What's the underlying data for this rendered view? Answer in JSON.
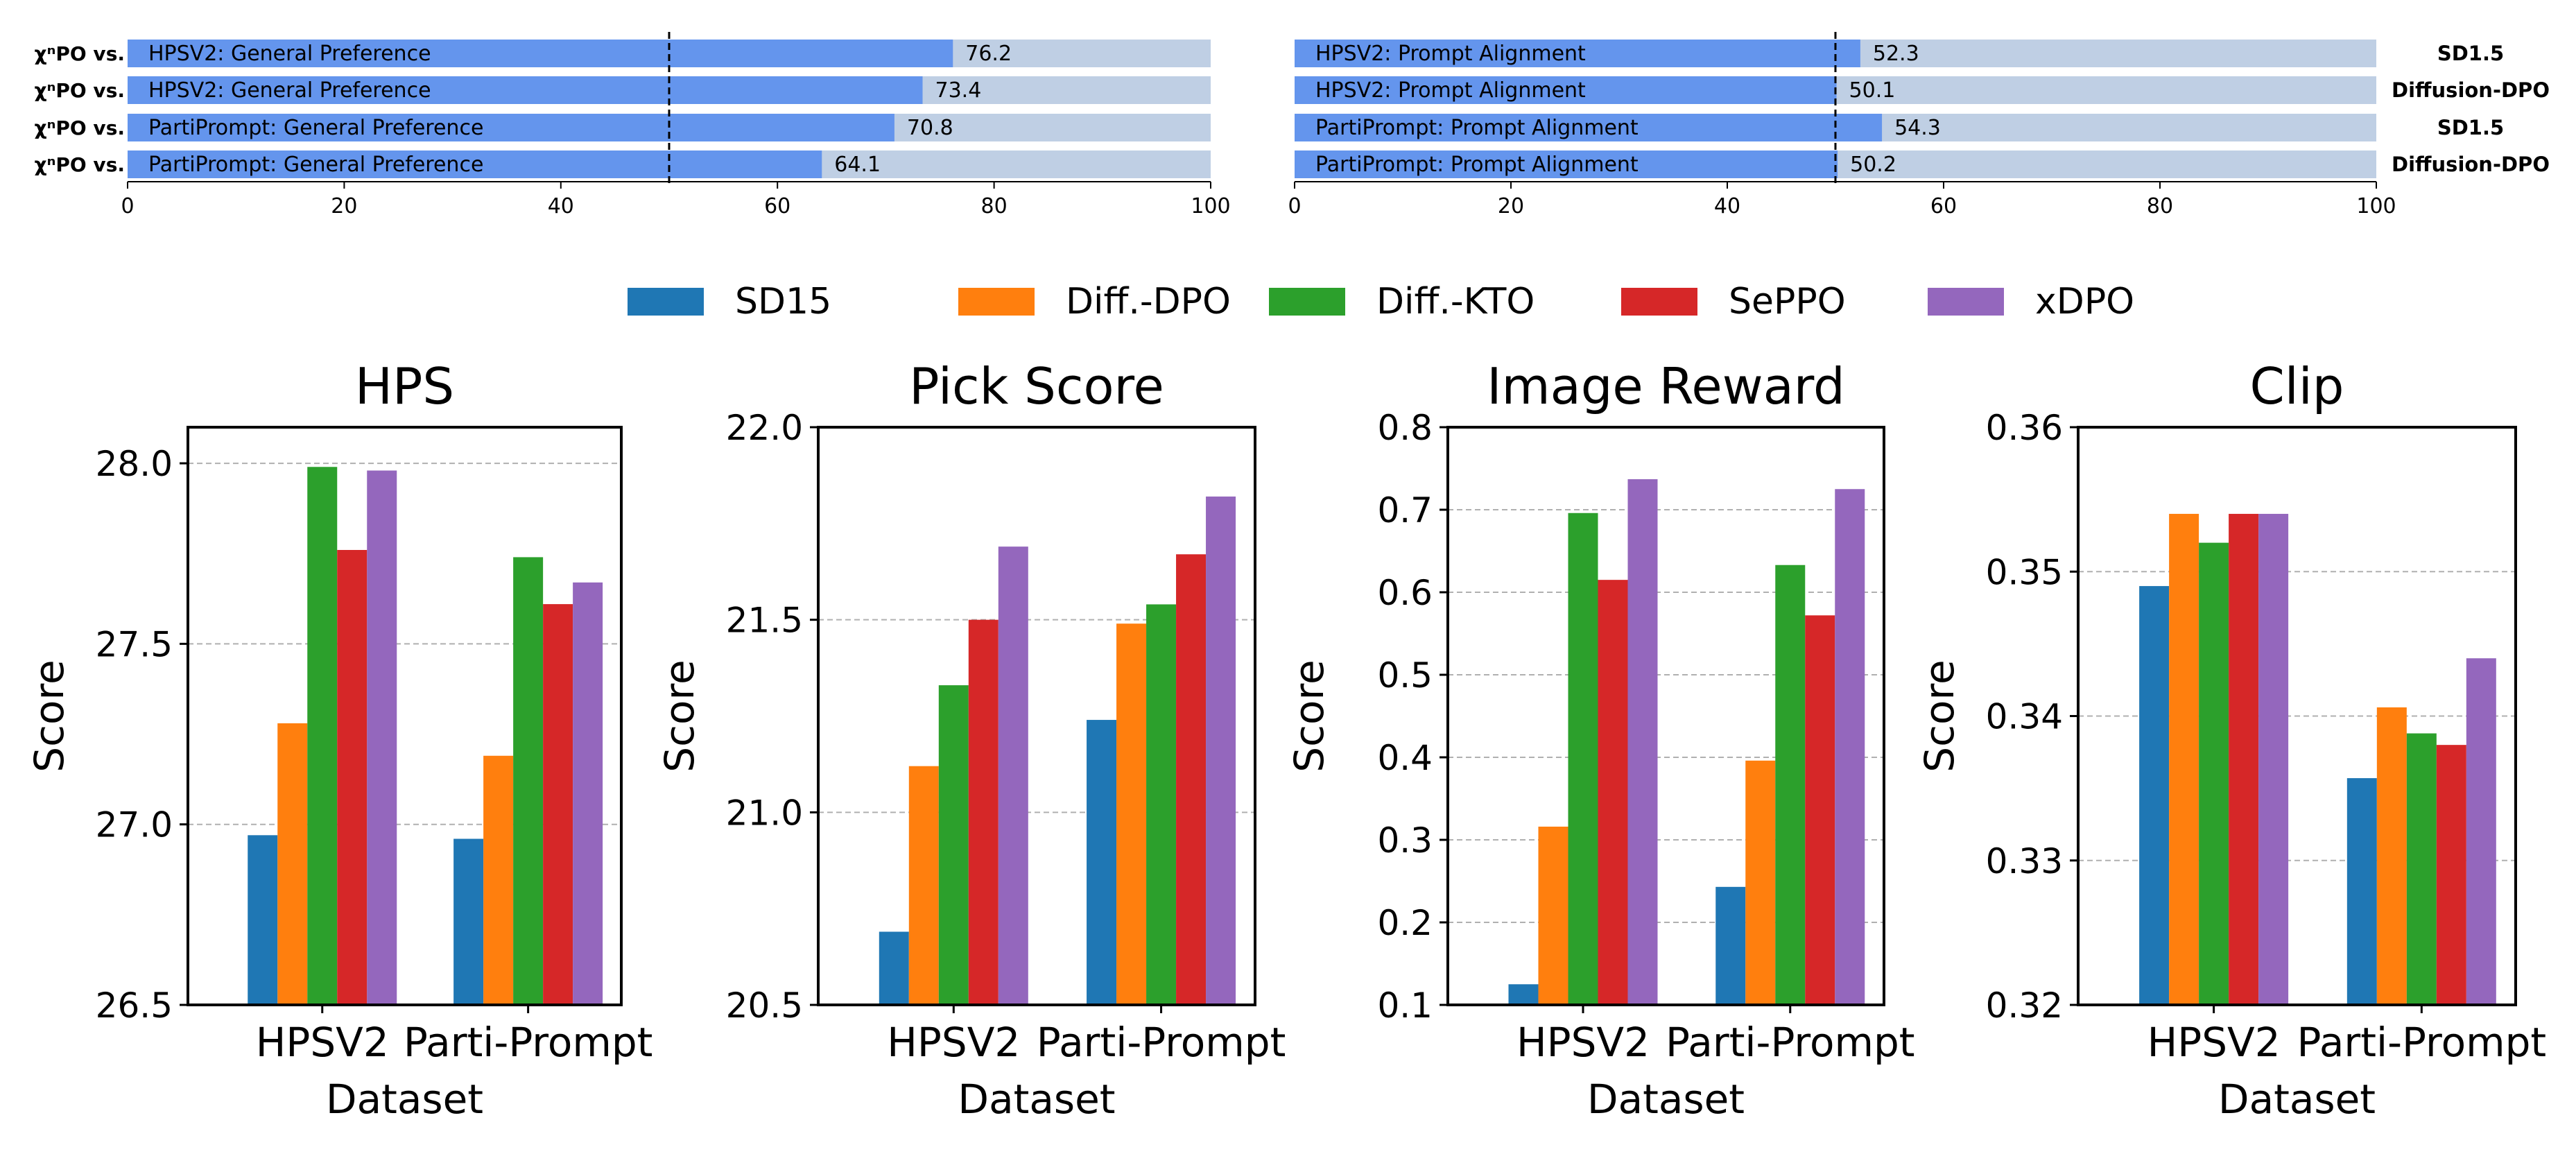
{
  "chart_data": [
    {
      "type": "bar",
      "orientation": "horizontal",
      "panel": "general-preference",
      "row_prefix": "χⁿPO vs.",
      "categories": [
        "HPSV2: General Preference",
        "HPSV2: General Preference",
        "PartiPrompt: General Preference",
        "PartiPrompt: General Preference"
      ],
      "values": [
        76.2,
        73.4,
        70.8,
        64.1
      ],
      "value_labels": [
        "76.2",
        "73.4",
        "70.8",
        "64.1"
      ],
      "xlim": [
        0,
        100
      ],
      "xticks": [
        0,
        20,
        40,
        60,
        80,
        100
      ],
      "reference_line": 50,
      "colors": {
        "win": "#6495ED",
        "background": "#BFCFE4"
      }
    },
    {
      "type": "bar",
      "orientation": "horizontal",
      "panel": "prompt-alignment",
      "categories": [
        "HPSV2: Prompt Alignment",
        "HPSV2: Prompt Alignment",
        "PartiPrompt: Prompt Alignment",
        "PartiPrompt: Prompt Alignment"
      ],
      "values": [
        52.3,
        50.1,
        54.3,
        50.2
      ],
      "value_labels": [
        "52.3",
        "50.1",
        "54.3",
        "50.2"
      ],
      "right_labels": [
        "SD1.5",
        "Diffusion-DPO",
        "SD1.5",
        "Diffusion-DPO"
      ],
      "xlim": [
        0,
        100
      ],
      "xticks": [
        0,
        20,
        40,
        60,
        80,
        100
      ],
      "reference_line": 50,
      "colors": {
        "win": "#6495ED",
        "background": "#BFCFE4"
      }
    },
    {
      "type": "bar",
      "title": "HPS",
      "xlabel": "Dataset",
      "ylabel": "Score",
      "categories": [
        "HPSV2",
        "Parti-Prompt"
      ],
      "ylim": [
        26.5,
        28.1
      ],
      "yticks": [
        26.5,
        27.0,
        27.5,
        28.0
      ],
      "ytick_labels": [
        "26.5",
        "27.0",
        "27.5",
        "28.0"
      ],
      "grid": true,
      "series": [
        {
          "name": "SD15",
          "values": [
            26.97,
            26.96
          ]
        },
        {
          "name": "Diff.-DPO",
          "values": [
            27.28,
            27.19
          ]
        },
        {
          "name": "Diff.-KTO",
          "values": [
            27.99,
            27.74
          ]
        },
        {
          "name": "SePPO",
          "values": [
            27.76,
            27.61
          ]
        },
        {
          "name": "xDPO",
          "values": [
            27.98,
            27.67
          ]
        }
      ]
    },
    {
      "type": "bar",
      "title": "Pick Score",
      "xlabel": "Dataset",
      "ylabel": "Score",
      "categories": [
        "HPSV2",
        "Parti-Prompt"
      ],
      "ylim": [
        20.5,
        22.0
      ],
      "yticks": [
        20.5,
        21.0,
        21.5,
        22.0
      ],
      "ytick_labels": [
        "20.5",
        "21.0",
        "21.5",
        "22.0"
      ],
      "grid": true,
      "series": [
        {
          "name": "SD15",
          "values": [
            20.69,
            21.24
          ]
        },
        {
          "name": "Diff.-DPO",
          "values": [
            21.12,
            21.49
          ]
        },
        {
          "name": "Diff.-KTO",
          "values": [
            21.33,
            21.54
          ]
        },
        {
          "name": "SePPO",
          "values": [
            21.5,
            21.67
          ]
        },
        {
          "name": "xDPO",
          "values": [
            21.69,
            21.82
          ]
        }
      ]
    },
    {
      "type": "bar",
      "title": "Image Reward",
      "xlabel": "Dataset",
      "ylabel": "Score",
      "categories": [
        "HPSV2",
        "Parti-Prompt"
      ],
      "ylim": [
        0.1,
        0.8
      ],
      "yticks": [
        0.1,
        0.2,
        0.3,
        0.4,
        0.5,
        0.6,
        0.7,
        0.8
      ],
      "ytick_labels": [
        "0.1",
        "0.2",
        "0.3",
        "0.4",
        "0.5",
        "0.6",
        "0.7",
        "0.8"
      ],
      "grid": true,
      "series": [
        {
          "name": "SD15",
          "values": [
            0.125,
            0.243
          ]
        },
        {
          "name": "Diff.-DPO",
          "values": [
            0.316,
            0.396
          ]
        },
        {
          "name": "Diff.-KTO",
          "values": [
            0.696,
            0.633
          ]
        },
        {
          "name": "SePPO",
          "values": [
            0.615,
            0.572
          ]
        },
        {
          "name": "xDPO",
          "values": [
            0.737,
            0.725
          ]
        }
      ]
    },
    {
      "type": "bar",
      "title": "Clip",
      "xlabel": "Dataset",
      "ylabel": "Score",
      "categories": [
        "HPSV2",
        "Parti-Prompt"
      ],
      "ylim": [
        0.32,
        0.36
      ],
      "yticks": [
        0.32,
        0.33,
        0.34,
        0.35,
        0.36
      ],
      "ytick_labels": [
        "0.32",
        "0.33",
        "0.34",
        "0.35",
        "0.36"
      ],
      "grid": true,
      "series": [
        {
          "name": "SD15",
          "values": [
            0.349,
            0.3357
          ]
        },
        {
          "name": "Diff.-DPO",
          "values": [
            0.354,
            0.3406
          ]
        },
        {
          "name": "Diff.-KTO",
          "values": [
            0.352,
            0.3388
          ]
        },
        {
          "name": "SePPO",
          "values": [
            0.354,
            0.338
          ]
        },
        {
          "name": "xDPO",
          "values": [
            0.354,
            0.344
          ]
        }
      ]
    }
  ],
  "legend": {
    "placement": "top-center",
    "items": [
      {
        "name": "SD15",
        "color": "#1F77B4"
      },
      {
        "name": "Diff.-DPO",
        "color": "#FF7F0E"
      },
      {
        "name": "Diff.-KTO",
        "color": "#2CA02C"
      },
      {
        "name": "SePPO",
        "color": "#D62728"
      },
      {
        "name": "xDPO",
        "color": "#9467BD"
      }
    ]
  }
}
